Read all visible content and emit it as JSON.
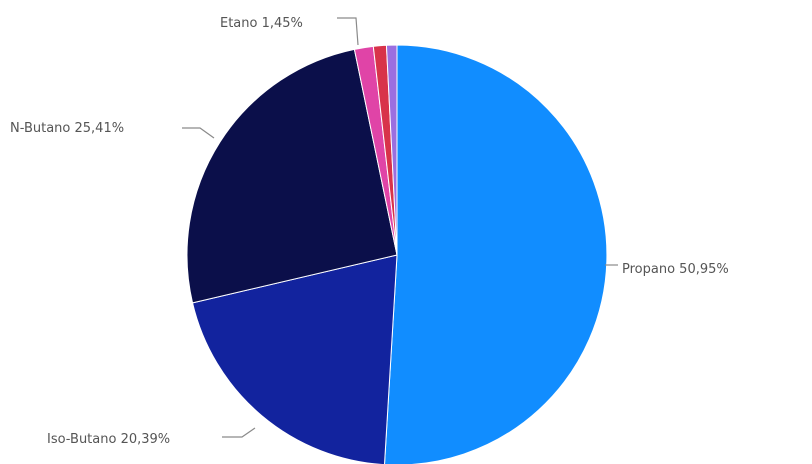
{
  "chart_data": {
    "type": "pie",
    "slices": [
      {
        "name": "Propano",
        "value": 50.95,
        "label": "Propano 50,95%",
        "color": "#118DFF"
      },
      {
        "name": "Iso-Butano",
        "value": 20.39,
        "label": "Iso-Butano 20,39%",
        "color": "#12239E"
      },
      {
        "name": "N-Butano",
        "value": 25.41,
        "label": "N-Butano 25,41%",
        "color": "#0B0F4A"
      },
      {
        "name": "Etano",
        "value": 1.45,
        "label": "Etano 1,45%",
        "color": "#E044A7"
      },
      {
        "name": "",
        "value": 1.0,
        "label": "",
        "color": "#D8334A"
      },
      {
        "name": "",
        "value": 0.8,
        "label": "",
        "color": "#9B6FE0"
      }
    ],
    "start_angle": "12 o'clock",
    "direction": "clockwise",
    "legend": "none",
    "title": ""
  }
}
